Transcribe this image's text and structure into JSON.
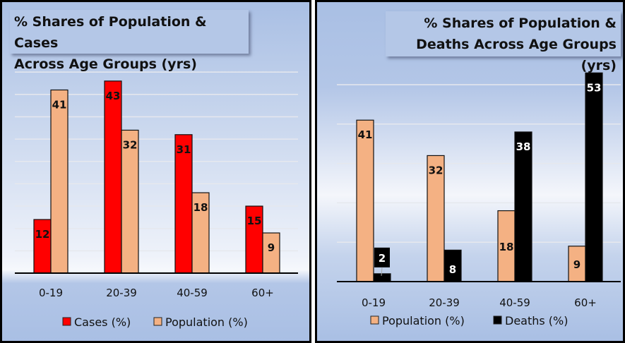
{
  "chart_data": [
    {
      "type": "bar",
      "title": "% Shares of Population & Cases Across Age Groups (yrs)",
      "title_lines": [
        "% Shares of Population & Cases",
        "Across Age Groups (yrs)"
      ],
      "categories": [
        "0-19",
        "20-39",
        "40-59",
        "60+"
      ],
      "series": [
        {
          "name": "Cases (%)",
          "values": [
            12,
            43,
            31,
            15
          ],
          "color": "#ff0000",
          "label_color": "#111111"
        },
        {
          "name": "Population (%)",
          "values": [
            41,
            32,
            18,
            9
          ],
          "color": "#f4b183",
          "label_color": "#111111"
        }
      ],
      "ylim": [
        0,
        45
      ],
      "grid_step": 5,
      "grid": true,
      "legend": "bottom",
      "xlabel": "",
      "ylabel": ""
    },
    {
      "type": "bar",
      "title": "% Shares of Population & Deaths Across Age Groups (yrs)",
      "title_lines": [
        "% Shares of Population &",
        "Deaths Across Age Groups (yrs)"
      ],
      "categories": [
        "0-19",
        "20-39",
        "40-59",
        "60+"
      ],
      "series": [
        {
          "name": "Population (%)",
          "values": [
            41,
            32,
            18,
            9
          ],
          "color": "#f4b183",
          "label_color": "#111111"
        },
        {
          "name": "Deaths (%)",
          "values": [
            2,
            8,
            38,
            53
          ],
          "color": "#000000",
          "label_color": "#ffffff"
        }
      ],
      "ylim": [
        0,
        53
      ],
      "grid_step": 10,
      "grid": true,
      "legend": "bottom",
      "xlabel": "",
      "ylabel": ""
    }
  ]
}
